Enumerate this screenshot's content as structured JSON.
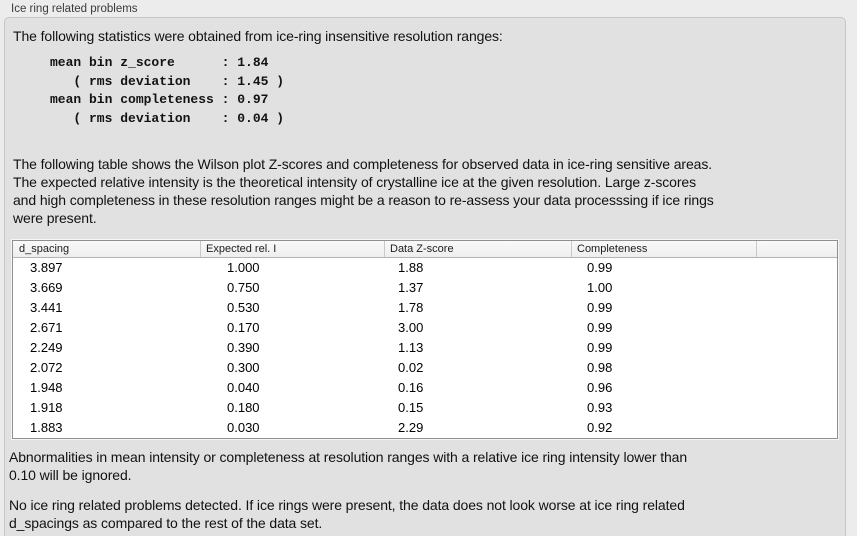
{
  "panel": {
    "title": "Ice ring related problems"
  },
  "intro": {
    "text": "The following statistics were obtained from ice-ring insensitive resolution ranges:"
  },
  "stats_block": {
    "lines": [
      "mean bin z_score      : 1.84",
      "   ( rms deviation    : 1.45 )",
      "mean bin completeness : 0.97",
      "   ( rms deviation    : 0.04 )"
    ],
    "mean_bin_z_score": "1.84",
    "z_score_rms_deviation": "1.45",
    "mean_bin_completeness": "0.97",
    "completeness_rms_deviation": "0.04"
  },
  "description": {
    "lines": [
      "The following table shows the Wilson plot Z-scores and completeness for observed data in ice-ring sensitive areas.",
      "The expected relative intensity is the theoretical intensity of crystalline ice at the given resolution. Large z-scores",
      "and high completeness in these resolution ranges might be a reason to re-assess your data processsing if ice rings",
      "were present."
    ]
  },
  "table": {
    "columns": [
      "d_spacing",
      "Expected rel. I",
      "Data Z-score",
      "Completeness"
    ],
    "rows": [
      [
        "3.897",
        "1.000",
        "1.88",
        "0.99"
      ],
      [
        "3.669",
        "0.750",
        "1.37",
        "1.00"
      ],
      [
        "3.441",
        "0.530",
        "1.78",
        "0.99"
      ],
      [
        "2.671",
        "0.170",
        "3.00",
        "0.99"
      ],
      [
        "2.249",
        "0.390",
        "1.13",
        "0.99"
      ],
      [
        "2.072",
        "0.300",
        "0.02",
        "0.98"
      ],
      [
        "1.948",
        "0.040",
        "0.16",
        "0.96"
      ],
      [
        "1.918",
        "0.180",
        "0.15",
        "0.93"
      ],
      [
        "1.883",
        "0.030",
        "2.29",
        "0.92"
      ]
    ]
  },
  "notes": {
    "note1_lines": [
      "Abnormalities in mean intensity or completeness at resolution ranges with a relative ice ring intensity lower than",
      "0.10 will be ignored."
    ],
    "note2_lines": [
      "No ice ring related problems detected. If ice rings were present, the data does not look worse at ice ring related",
      "d_spacings as compared to the rest of the data set."
    ]
  },
  "colors": {
    "window_bg": "#ececec",
    "groupbox_bg": "#e1e1e1",
    "groupbox_border": "#c6c6c6",
    "table_bg": "#ffffff",
    "table_border": "#8f8f8f",
    "table_header_bg": "#f4f4f4"
  }
}
